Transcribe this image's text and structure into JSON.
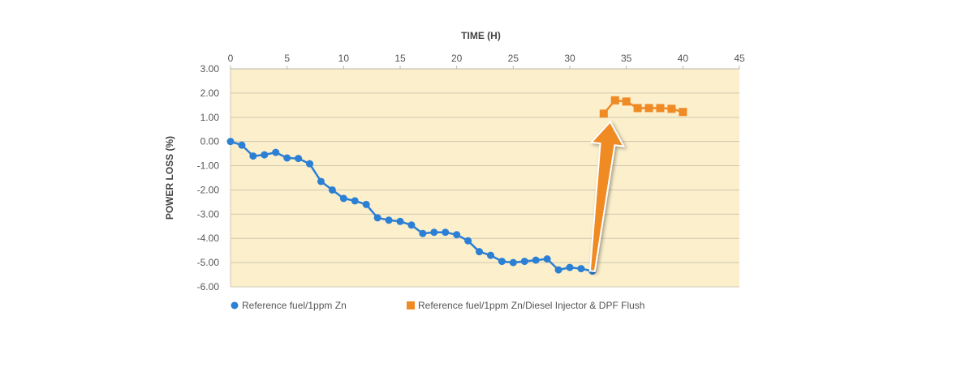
{
  "chart_data": {
    "type": "line",
    "xlabel": "TIME (H)",
    "ylabel": "POWER LOSS (%)",
    "xlim": [
      0,
      45
    ],
    "ylim": [
      -6,
      3
    ],
    "x_ticks": [
      "0",
      "5",
      "10",
      "15",
      "20",
      "25",
      "30",
      "35",
      "40",
      "45"
    ],
    "y_ticks": [
      "3.00",
      "2.00",
      "1.00",
      "0.00",
      "-1.00",
      "-2.00",
      "-3.00",
      "-4.00",
      "-5.00",
      "-6.00"
    ],
    "x_axis_position": "top",
    "grid": true,
    "legend": "bottom",
    "plot_background": "#fbefcc",
    "series": [
      {
        "name": "Reference fuel/1ppm Zn",
        "color": "#2b7fd4",
        "marker": "circle",
        "x": [
          0,
          1,
          2,
          3,
          4,
          5,
          6,
          7,
          8,
          9,
          10,
          11,
          12,
          13,
          14,
          15,
          16,
          17,
          18,
          19,
          20,
          21,
          22,
          23,
          24,
          25,
          26,
          27,
          28,
          29,
          30,
          31,
          32
        ],
        "values": [
          0.0,
          -0.15,
          -0.6,
          -0.55,
          -0.45,
          -0.68,
          -0.7,
          -0.92,
          -1.65,
          -2.0,
          -2.35,
          -2.45,
          -2.6,
          -3.15,
          -3.25,
          -3.3,
          -3.45,
          -3.8,
          -3.75,
          -3.75,
          -3.85,
          -4.1,
          -4.55,
          -4.7,
          -4.95,
          -5.0,
          -4.95,
          -4.9,
          -4.85,
          -5.3,
          -5.2,
          -5.25,
          -5.35
        ]
      },
      {
        "name": "Reference fuel/1ppm Zn/Diesel Injector & DPF Flush",
        "color": "#f08a24",
        "marker": "square",
        "x": [
          33,
          34,
          35,
          36,
          37,
          38,
          39,
          40
        ],
        "values": [
          1.15,
          1.7,
          1.65,
          1.38,
          1.38,
          1.38,
          1.35,
          1.22
        ]
      }
    ],
    "annotation": {
      "type": "arrow",
      "color": "#f08a24",
      "from": [
        32,
        -5.35
      ],
      "to": [
        33,
        1.15
      ]
    }
  }
}
